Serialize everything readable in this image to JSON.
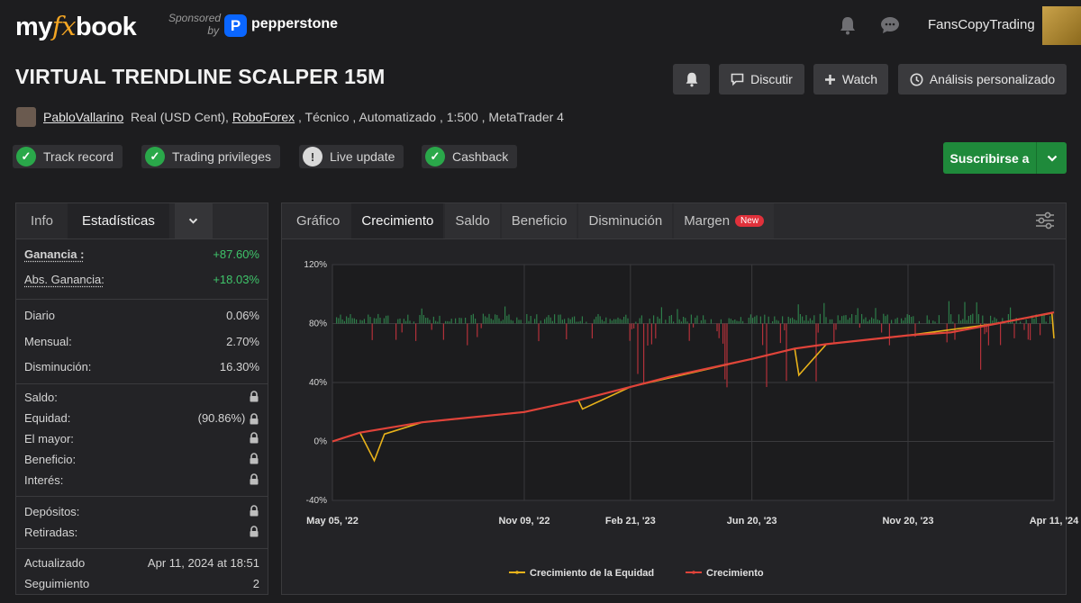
{
  "topbar": {
    "logo_my": "my",
    "logo_fx": "fx",
    "logo_book": "book",
    "sponsored_line1": "Sponsored",
    "sponsored_line2": "by",
    "sponsor_logo_letter": "P",
    "sponsor_name": "pepperstone",
    "username": "FansCopyTrading"
  },
  "title": "VIRTUAL TRENDLINE SCALPER 15M",
  "actions": {
    "discutir": "Discutir",
    "watch": "Watch",
    "analisis": "Análisis personalizado"
  },
  "subtitle": {
    "author": "PabloVallarino",
    "account_type": "Real (USD Cent),",
    "broker": "RoboForex",
    "details": ", Técnico , Automatizado , 1:500 , MetaTrader 4"
  },
  "badges": [
    {
      "label": "Track record",
      "status": "ok"
    },
    {
      "label": "Trading privileges",
      "status": "ok"
    },
    {
      "label": "Live update",
      "status": "warn"
    },
    {
      "label": "Cashback",
      "status": "ok"
    }
  ],
  "subscribe_label": "Suscribirse a",
  "left_tabs": {
    "info": "Info",
    "stats": "Estadísticas"
  },
  "stats": {
    "ganancia_label": "Ganancia :",
    "ganancia": "+87.60%",
    "abs_label": "Abs. Ganancia:",
    "abs": "+18.03%",
    "diario_label": "Diario",
    "diario": "0.06%",
    "mensual_label": "Mensual:",
    "mensual": "2.70%",
    "disminucion_label": "Disminución:",
    "disminucion": "16.30%",
    "saldo_label": "Saldo:",
    "equidad_label": "Equidad:",
    "equidad": "(90.86%)",
    "mayor_label": "El mayor:",
    "beneficio_label": "Beneficio:",
    "interes_label": "Interés:",
    "depositos_label": "Depósitos:",
    "retiradas_label": "Retiradas:",
    "actualizado_label": "Actualizado",
    "actualizado": "Apr 11, 2024 at 18:51",
    "seguimiento_label": "Seguimiento",
    "seguimiento": "2"
  },
  "chart_tabs": [
    "Gráfico",
    "Crecimiento",
    "Saldo",
    "Beneficio",
    "Disminución",
    "Margen"
  ],
  "chart_active_tab": "Crecimiento",
  "new_badge": "New",
  "colors": {
    "growth": "#e0433a",
    "equity": "#e8b21a",
    "bar_positive": "#2e7d4a",
    "bar_negative": "#b3313a",
    "accent_green": "#1f8a3b"
  },
  "chart_data": {
    "type": "line",
    "xlabel": "",
    "ylabel": "",
    "x_ticks": [
      "May 05, '22",
      "Nov 09, '22",
      "Feb 21, '23",
      "Jun 20, '23",
      "Nov 20, '23",
      "Apr 11, '24"
    ],
    "y_ticks": [
      "120%",
      "80%",
      "40%",
      "0%",
      "-40%"
    ],
    "ylim": [
      -40,
      120
    ],
    "grid": true,
    "legend": "bottom",
    "series": [
      {
        "name": "Crecimiento",
        "x": [
          "2022-05-05",
          "2022-06-01",
          "2022-08-01",
          "2022-11-09",
          "2023-01-01",
          "2023-02-21",
          "2023-04-01",
          "2023-06-20",
          "2023-08-01",
          "2023-09-01",
          "2023-11-20",
          "2024-01-01",
          "2024-02-15",
          "2024-04-11"
        ],
        "values": [
          0,
          6,
          13,
          20,
          28,
          37,
          44,
          56,
          63,
          66,
          72,
          74,
          80,
          87.6
        ]
      },
      {
        "name": "Crecimiento de la Equidad",
        "x": [
          "2022-05-05",
          "2022-06-01",
          "2022-06-15",
          "2022-06-25",
          "2022-08-01",
          "2022-11-09",
          "2023-01-01",
          "2023-01-05",
          "2023-02-21",
          "2023-06-20",
          "2023-08-01",
          "2023-08-05",
          "2023-09-01",
          "2023-11-20",
          "2024-02-15",
          "2024-04-09",
          "2024-04-11"
        ],
        "values": [
          0,
          6,
          -13,
          5,
          13,
          20,
          28,
          22,
          37,
          56,
          63,
          45,
          66,
          72,
          80,
          87,
          70
        ]
      }
    ]
  }
}
